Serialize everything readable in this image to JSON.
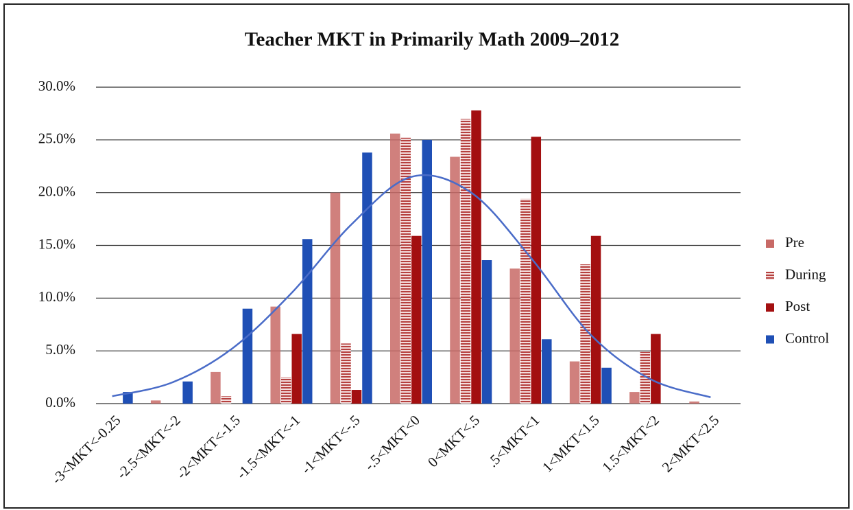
{
  "chart_data": {
    "type": "bar",
    "title": "Teacher MKT in Primarily Math 2009–2012",
    "categories": [
      "-3<MKT<-0.25",
      "-2.5<MKT<-2",
      "-2<MKT<-1.5",
      "-1.5<MKT<-1",
      "-1<MKT<-.5",
      "-.5<MKT<0",
      "0<MKT<.5",
      ".5<MKT<1",
      "1<MKT<1.5",
      "1.5<MKT<2",
      "2<MKT<2.5"
    ],
    "series": [
      {
        "name": "Pre",
        "color": "#c86a66",
        "values": [
          0,
          0.3,
          3.0,
          9.2,
          20.0,
          25.6,
          23.4,
          12.8,
          4.0,
          1.1,
          0.2
        ]
      },
      {
        "name": "During",
        "color": "#b5403e",
        "values": [
          0,
          0,
          0.7,
          2.5,
          5.7,
          25.2,
          27.0,
          19.4,
          13.2,
          4.9,
          0
        ]
      },
      {
        "name": "Post",
        "color": "#a30f10",
        "values": [
          0,
          0,
          0,
          6.6,
          1.3,
          15.9,
          27.8,
          25.3,
          15.9,
          6.6,
          0
        ]
      },
      {
        "name": "Control",
        "color": "#1f4fb5",
        "values": [
          1.1,
          2.1,
          9.0,
          15.6,
          23.8,
          25.0,
          13.6,
          6.1,
          3.4,
          0,
          0
        ]
      }
    ],
    "curve": {
      "type": "line",
      "color": "#4a6cc8",
      "values": [
        0.7,
        2.0,
        5.2,
        10.5,
        17.0,
        21.5,
        20.0,
        13.8,
        6.5,
        2.3,
        0.6
      ]
    },
    "ylim": [
      0,
      30
    ],
    "yticks": [
      {
        "value": 0,
        "label": "0.0%"
      },
      {
        "value": 5,
        "label": "5.0%"
      },
      {
        "value": 10,
        "label": "10.0%"
      },
      {
        "value": 15,
        "label": "15.0%"
      },
      {
        "value": 20,
        "label": "20.0%"
      },
      {
        "value": 25,
        "label": "25.0%"
      },
      {
        "value": 30,
        "label": "30.0%"
      }
    ],
    "grid": true,
    "legend": "right"
  }
}
